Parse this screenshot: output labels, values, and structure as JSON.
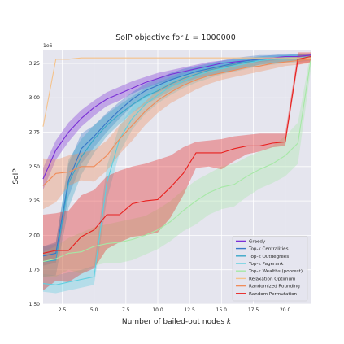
{
  "chart_data": {
    "type": "line",
    "title": "SoIP objective for L = 1000000",
    "title_parts": {
      "prefix": "SoIP objective for ",
      "variable": "L",
      "suffix": " = 1000000"
    },
    "xlabel": "Number of bailed-out nodes k",
    "xlabel_parts": {
      "prefix": "Number of bailed-out nodes ",
      "variable": "k"
    },
    "ylabel": "SoIP",
    "y_scale_label": "1e6",
    "xlim": [
      1,
      22
    ],
    "ylim": [
      1.5,
      3.35
    ],
    "x_ticks": [
      2.5,
      5.0,
      7.5,
      10.0,
      12.5,
      15.0,
      17.5,
      20.0
    ],
    "x_tick_labels": [
      "2.5",
      "5.0",
      "7.5",
      "10.0",
      "12.5",
      "15.0",
      "17.5",
      "20.0"
    ],
    "y_ticks": [
      1.5,
      1.75,
      2.0,
      2.25,
      2.5,
      2.75,
      3.0,
      3.25
    ],
    "y_tick_labels": [
      "1.50",
      "1.75",
      "2.00",
      "2.25",
      "2.50",
      "2.75",
      "3.00",
      "3.25"
    ],
    "grid": true,
    "background": "#e5e5ee",
    "legend_position": "lower-right",
    "x": [
      1,
      2,
      3,
      4,
      5,
      6,
      7,
      8,
      9,
      10,
      11,
      12,
      13,
      14,
      15,
      16,
      17,
      18,
      19,
      20,
      21,
      22
    ],
    "series": [
      {
        "name": "Greedy",
        "color": "#7a2fd6",
        "values": [
          2.41,
          2.62,
          2.75,
          2.85,
          2.93,
          2.99,
          3.03,
          3.07,
          3.11,
          3.14,
          3.17,
          3.19,
          3.21,
          3.23,
          3.25,
          3.26,
          3.27,
          3.28,
          3.29,
          3.3,
          3.3,
          3.31
        ],
        "lower": [
          2.33,
          2.55,
          2.68,
          2.79,
          2.87,
          2.94,
          2.98,
          3.03,
          3.07,
          3.1,
          3.13,
          3.16,
          3.18,
          3.2,
          3.22,
          3.24,
          3.25,
          3.26,
          3.27,
          3.28,
          3.29,
          3.3
        ],
        "upper": [
          2.49,
          2.69,
          2.82,
          2.91,
          2.98,
          3.04,
          3.08,
          3.12,
          3.15,
          3.18,
          3.2,
          3.22,
          3.24,
          3.26,
          3.27,
          3.28,
          3.29,
          3.3,
          3.31,
          3.31,
          3.32,
          3.32
        ]
      },
      {
        "name": "Top-k Centralities",
        "color": "#3778c8",
        "values": [
          1.85,
          1.87,
          2.4,
          2.63,
          2.72,
          2.82,
          2.91,
          2.99,
          3.05,
          3.09,
          3.13,
          3.16,
          3.19,
          3.21,
          3.23,
          3.25,
          3.27,
          3.28,
          3.28,
          3.29,
          3.29,
          3.3
        ],
        "lower": [
          1.78,
          1.8,
          2.28,
          2.52,
          2.64,
          2.75,
          2.85,
          2.94,
          3.0,
          3.04,
          3.08,
          3.11,
          3.14,
          3.16,
          3.18,
          3.2,
          3.22,
          3.24,
          3.25,
          3.26,
          3.27,
          3.28
        ],
        "upper": [
          1.92,
          1.95,
          2.52,
          2.74,
          2.8,
          2.89,
          2.97,
          3.04,
          3.1,
          3.14,
          3.18,
          3.21,
          3.23,
          3.25,
          3.27,
          3.29,
          3.3,
          3.31,
          3.31,
          3.32,
          3.32,
          3.32
        ]
      },
      {
        "name": "Top-k Outdegrees",
        "color": "#3aa8c8",
        "values": [
          1.81,
          1.82,
          2.38,
          2.57,
          2.7,
          2.8,
          2.88,
          2.95,
          3.01,
          3.05,
          3.1,
          3.14,
          3.17,
          3.2,
          3.22,
          3.24,
          3.26,
          3.27,
          3.28,
          3.29,
          3.29,
          3.3
        ],
        "lower": [
          1.7,
          1.71,
          2.2,
          2.44,
          2.6,
          2.72,
          2.81,
          2.89,
          2.95,
          3.0,
          3.05,
          3.09,
          3.13,
          3.16,
          3.18,
          3.2,
          3.22,
          3.24,
          3.25,
          3.26,
          3.27,
          3.28
        ],
        "upper": [
          1.92,
          1.94,
          2.55,
          2.7,
          2.8,
          2.88,
          2.95,
          3.01,
          3.07,
          3.11,
          3.15,
          3.19,
          3.22,
          3.24,
          3.26,
          3.27,
          3.29,
          3.3,
          3.3,
          3.31,
          3.31,
          3.31
        ]
      },
      {
        "name": "Top-k Pagerank",
        "color": "#5ccfe0",
        "values": [
          1.65,
          1.64,
          1.66,
          1.68,
          1.7,
          2.38,
          2.7,
          2.85,
          2.95,
          3.02,
          3.08,
          3.12,
          3.16,
          3.19,
          3.21,
          3.23,
          3.25,
          3.27,
          3.28,
          3.28,
          3.29,
          3.3
        ],
        "lower": [
          1.59,
          1.58,
          1.6,
          1.62,
          1.64,
          2.26,
          2.6,
          2.77,
          2.88,
          2.96,
          3.02,
          3.07,
          3.11,
          3.14,
          3.17,
          3.19,
          3.21,
          3.23,
          3.24,
          3.25,
          3.26,
          3.27
        ],
        "upper": [
          1.72,
          1.71,
          1.73,
          1.75,
          1.78,
          2.5,
          2.8,
          2.93,
          3.02,
          3.08,
          3.13,
          3.17,
          3.21,
          3.24,
          3.26,
          3.28,
          3.29,
          3.3,
          3.31,
          3.31,
          3.32,
          3.32
        ]
      },
      {
        "name": "Top-k Wealths (poorest)",
        "color": "#a6e8a6",
        "values": [
          1.81,
          1.83,
          1.87,
          1.88,
          1.92,
          1.94,
          1.95,
          1.97,
          2.0,
          2.04,
          2.1,
          2.18,
          2.25,
          2.31,
          2.35,
          2.37,
          2.43,
          2.48,
          2.52,
          2.58,
          2.67,
          3.27
        ],
        "lower": [
          1.7,
          1.7,
          1.75,
          1.72,
          1.78,
          1.8,
          1.8,
          1.82,
          1.86,
          1.9,
          1.96,
          2.03,
          2.08,
          2.15,
          2.19,
          2.21,
          2.28,
          2.34,
          2.38,
          2.43,
          2.52,
          3.2
        ],
        "upper": [
          1.88,
          1.92,
          1.98,
          2.02,
          2.06,
          2.08,
          2.1,
          2.12,
          2.14,
          2.19,
          2.25,
          2.33,
          2.4,
          2.45,
          2.5,
          2.52,
          2.57,
          2.61,
          2.65,
          2.72,
          2.82,
          3.33
        ]
      },
      {
        "name": "Relaxation Optimum",
        "color": "#f5c28a",
        "values": [
          2.79,
          3.28,
          3.28,
          3.29,
          3.29,
          3.29,
          3.29,
          3.29,
          3.29,
          3.29,
          3.29,
          3.29,
          3.29,
          3.29,
          3.29,
          3.29,
          3.29,
          3.29,
          3.29,
          3.29,
          3.29,
          3.29
        ]
      },
      {
        "name": "Randomized Rounding",
        "color": "#f08c5a",
        "values": [
          2.36,
          2.45,
          2.46,
          2.5,
          2.5,
          2.58,
          2.7,
          2.8,
          2.9,
          2.98,
          3.04,
          3.09,
          3.13,
          3.16,
          3.18,
          3.2,
          3.22,
          3.23,
          3.25,
          3.26,
          3.27,
          3.28
        ],
        "lower": [
          2.19,
          2.24,
          2.36,
          2.4,
          2.39,
          2.47,
          2.59,
          2.69,
          2.8,
          2.89,
          2.96,
          3.01,
          3.06,
          3.1,
          3.13,
          3.15,
          3.17,
          3.19,
          3.21,
          3.23,
          3.24,
          3.25
        ],
        "upper": [
          2.56,
          2.55,
          2.58,
          2.6,
          2.62,
          2.69,
          2.8,
          2.89,
          2.97,
          3.06,
          3.11,
          3.15,
          3.18,
          3.21,
          3.23,
          3.25,
          3.26,
          3.27,
          3.28,
          3.29,
          3.3,
          3.31
        ]
      },
      {
        "name": "Random Permutation",
        "color": "#e8201e",
        "values": [
          1.87,
          1.89,
          1.89,
          1.99,
          2.04,
          2.15,
          2.15,
          2.23,
          2.25,
          2.26,
          2.35,
          2.45,
          2.6,
          2.6,
          2.6,
          2.63,
          2.65,
          2.65,
          2.67,
          2.68,
          3.28,
          3.3
        ],
        "lower": [
          1.6,
          1.67,
          1.66,
          1.72,
          1.76,
          1.9,
          1.95,
          1.99,
          2.0,
          2.02,
          2.13,
          2.29,
          2.49,
          2.5,
          2.48,
          2.54,
          2.59,
          2.61,
          2.64,
          2.65,
          3.24,
          3.26
        ],
        "upper": [
          2.15,
          2.16,
          2.18,
          2.29,
          2.33,
          2.43,
          2.47,
          2.5,
          2.52,
          2.55,
          2.58,
          2.64,
          2.68,
          2.69,
          2.7,
          2.72,
          2.73,
          2.74,
          2.74,
          2.74,
          3.33,
          3.33
        ]
      }
    ]
  }
}
